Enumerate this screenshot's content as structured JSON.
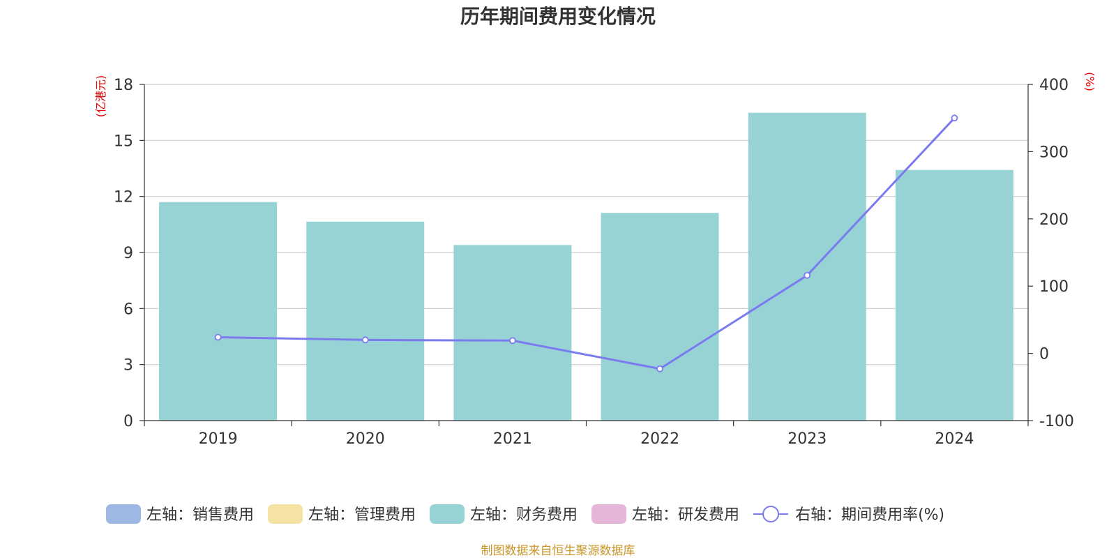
{
  "title": "历年期间费用变化情况",
  "source": "制图数据来自恒生聚源数据库",
  "chart_data": {
    "type": "bar",
    "categories": [
      "2019",
      "2020",
      "2021",
      "2022",
      "2023",
      "2024"
    ],
    "left_axis": {
      "unit": "(亿港元)",
      "ylim": [
        0,
        18
      ],
      "ticks": [
        "0",
        "3",
        "6",
        "9",
        "12",
        "15",
        "18"
      ]
    },
    "right_axis": {
      "unit": "(%)",
      "ylim": [
        -100,
        400
      ],
      "ticks": [
        "-100",
        "0",
        "100",
        "200",
        "300",
        "400"
      ]
    },
    "series": [
      {
        "name": "左轴：销售费用",
        "type": "bar",
        "axis": "left",
        "color": "#9db8e3",
        "values": [
          null,
          null,
          null,
          null,
          null,
          null
        ]
      },
      {
        "name": "左轴：管理费用",
        "type": "bar",
        "axis": "left",
        "color": "#f5e3a3",
        "values": [
          null,
          null,
          null,
          null,
          null,
          null
        ]
      },
      {
        "name": "左轴：财务费用",
        "type": "bar",
        "axis": "left",
        "color": "#97d3d4",
        "values": [
          11.7,
          10.65,
          9.4,
          11.12,
          16.48,
          13.42
        ]
      },
      {
        "name": "左轴：研发费用",
        "type": "bar",
        "axis": "left",
        "color": "#e6b6d8",
        "values": [
          null,
          null,
          null,
          null,
          null,
          null
        ]
      },
      {
        "name": "右轴：期间费用率(%)",
        "type": "line",
        "axis": "right",
        "color": "#7b7bef",
        "values": [
          24,
          20,
          19,
          -23,
          116,
          350
        ]
      }
    ],
    "grid": true,
    "legend_position": "bottom"
  }
}
